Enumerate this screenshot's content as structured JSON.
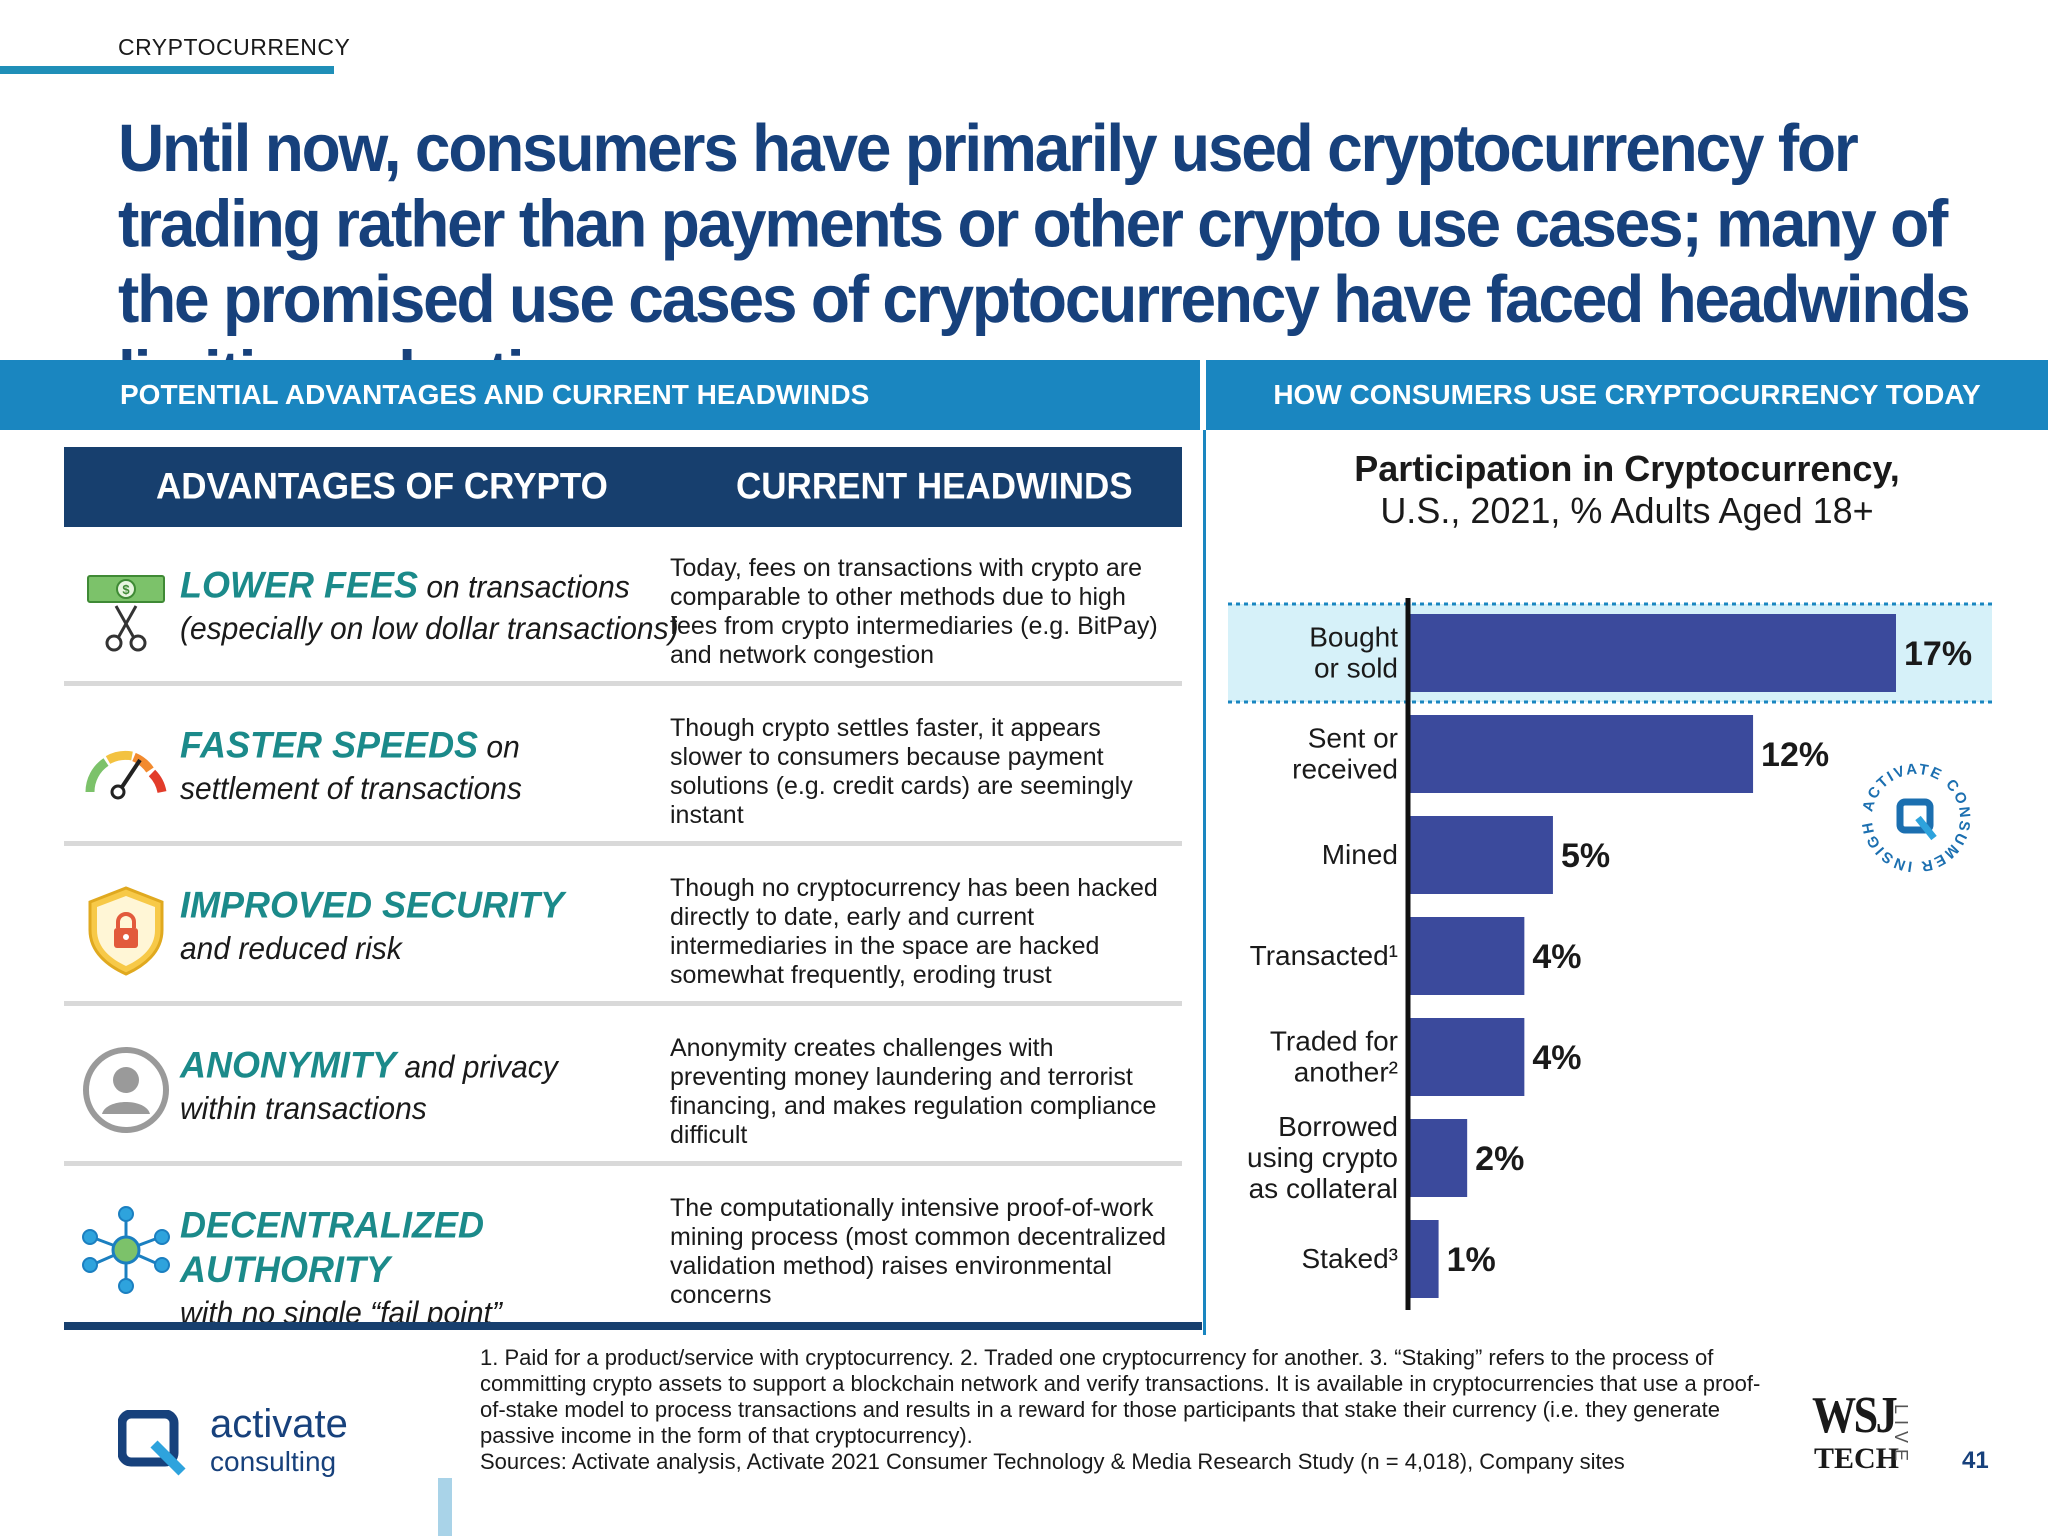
{
  "section_tag": "CRYPTOCURRENCY",
  "headline": "Until now, consumers have primarily used cryptocurrency for trading rather than payments or other crypto use cases; many of the promised use cases of cryptocurrency have faced headwinds limiting adoption",
  "bands": {
    "left": "POTENTIAL ADVANTAGES AND CURRENT HEADWINDS",
    "right": "HOW CONSUMERS USE CRYPTOCURRENCY TODAY"
  },
  "table": {
    "header_advantages": "ADVANTAGES OF CRYPTO",
    "header_headwinds": "CURRENT HEADWINDS",
    "rows": [
      {
        "icon": "money-scissors-icon",
        "adv_highlight": "LOWER FEES",
        "adv_rest": " on transactions",
        "adv_line2": "(especially on low dollar transactions)",
        "headwind": "Today, fees on transactions with crypto are comparable to other methods due to high fees from crypto intermediaries (e.g. BitPay) and network congestion"
      },
      {
        "icon": "speedometer-icon",
        "adv_highlight": "FASTER SPEEDS",
        "adv_rest": " on",
        "adv_line2": "settlement of transactions",
        "headwind": "Though crypto settles faster, it appears slower to consumers because payment solutions (e.g. credit cards) are seemingly instant"
      },
      {
        "icon": "shield-lock-icon",
        "adv_highlight": "IMPROVED SECURITY",
        "adv_rest": "",
        "adv_line2": "and reduced risk",
        "headwind": "Though no cryptocurrency has been hacked directly to date, early and current intermediaries in the space are hacked somewhat frequently, eroding trust"
      },
      {
        "icon": "anonymous-user-icon",
        "adv_highlight": "ANONYMITY",
        "adv_rest": " and privacy",
        "adv_line2": "within transactions",
        "headwind": "Anonymity creates challenges with preventing money laundering and terrorist financing, and makes regulation compliance difficult"
      },
      {
        "icon": "network-nodes-icon",
        "adv_highlight": "DECENTRALIZED AUTHORITY",
        "adv_rest": "",
        "adv_line2": "with no single “fail point”",
        "headwind": "The computationally intensive proof-of-work mining process (most common decentralized validation method) raises environmental concerns"
      }
    ]
  },
  "chart_data": {
    "type": "bar",
    "orientation": "horizontal",
    "title": "Participation in Cryptocurrency,",
    "subtitle": "U.S., 2021, % Adults Aged 18+",
    "categories": [
      [
        "Bought",
        "or sold"
      ],
      [
        "Sent or",
        "received"
      ],
      [
        "Mined"
      ],
      [
        "Transacted¹"
      ],
      [
        "Traded for",
        "another²"
      ],
      [
        "Borrowed",
        "using crypto",
        "as collateral"
      ],
      [
        "Staked³"
      ]
    ],
    "values": [
      17,
      12,
      5,
      4,
      4,
      2,
      1
    ],
    "value_labels": [
      "17%",
      "12%",
      "5%",
      "4%",
      "4%",
      "2%",
      "1%"
    ],
    "highlighted_category_index": 0,
    "xlim": [
      0,
      17
    ],
    "bar_color": "#3b4a9c",
    "highlight_color": "#d6f1f9"
  },
  "seal": {
    "text": "ACTIVATE CONSUMER INSIGHT",
    "icon": "activate-seal-icon"
  },
  "footnotes": [
    "1. Paid for a product/service with cryptocurrency.  2. Traded one cryptocurrency for another.  3. “Staking” refers to the process of committing crypto assets to support a blockchain network and verify transactions. It is available in cryptocurrencies that use a proof-of-stake model to process transactions and results in a reward for those participants that stake their currency (i.e. they generate passive income in the form of that cryptocurrency).",
    "Sources: Activate analysis, Activate 2021 Consumer Technology & Media Research Study (n = 4,018), Company sites"
  ],
  "logo": {
    "line1": "activate",
    "line2": "consulting"
  },
  "wsj": {
    "top": "WSJ",
    "bottom": "TECH",
    "side": "LIVE"
  },
  "page_number": "41",
  "colors": {
    "headline": "#17417c",
    "band": "#1a86c0",
    "table_header": "#173f6e",
    "teal_highlight": "#1b8a8a"
  }
}
